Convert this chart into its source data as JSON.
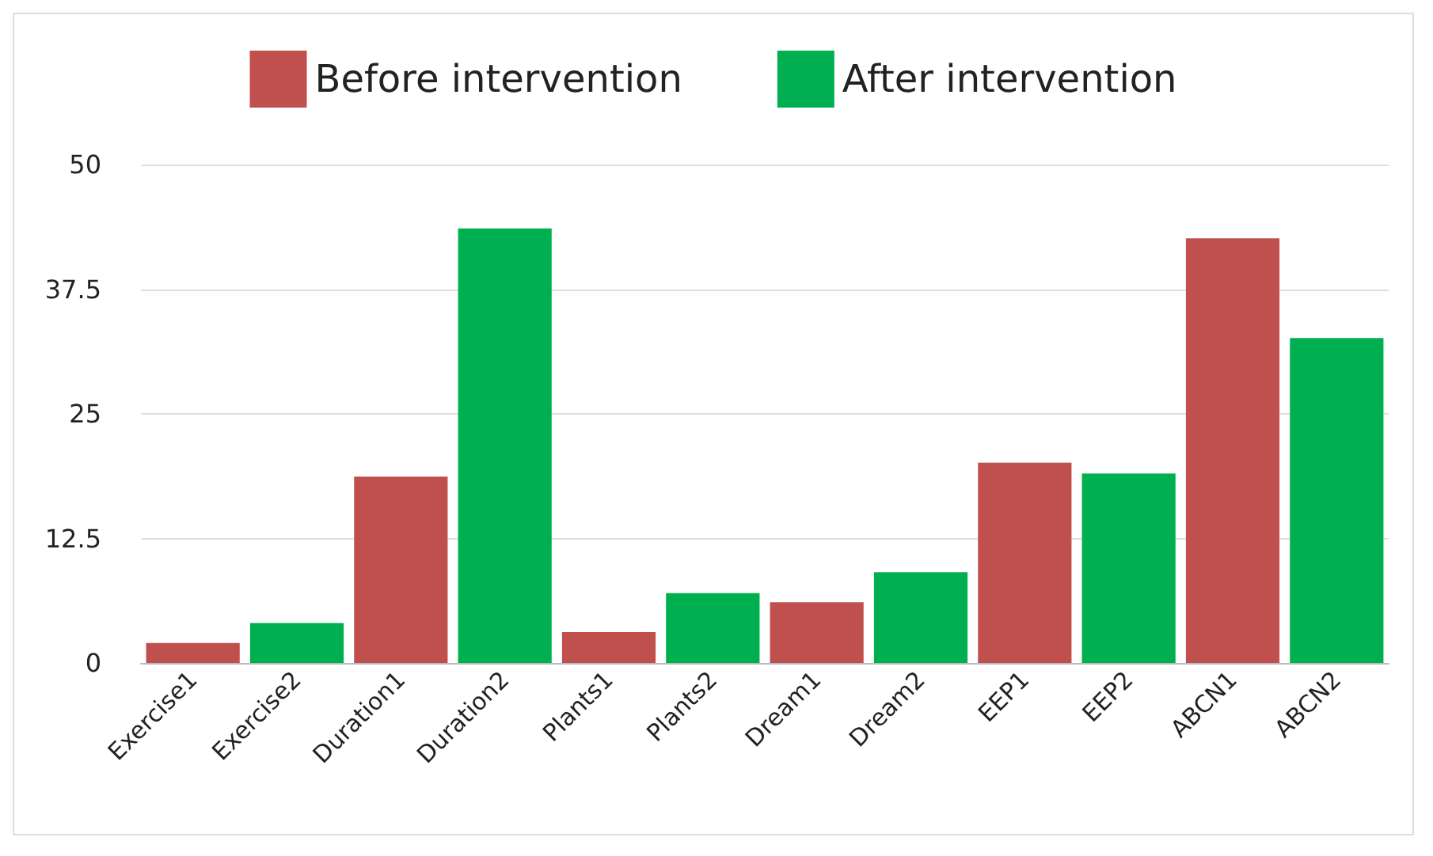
{
  "chart_data": {
    "type": "bar",
    "categories": [
      "Exercise1",
      "Exercise2",
      "Duration1",
      "Duration2",
      "Plants1",
      "Plants2",
      "Dream1",
      "Dream2",
      "EEP1",
      "EEP2",
      "ABCN1",
      "ABCN2"
    ],
    "series": [
      {
        "name": "Before intervention",
        "color": "#c0504d",
        "values": [
          2,
          null,
          18.7,
          null,
          3.1,
          null,
          6.1,
          null,
          20.1,
          null,
          42.6,
          null
        ]
      },
      {
        "name": "After intervention",
        "color": "#00b050",
        "values": [
          null,
          4,
          null,
          43.6,
          null,
          7,
          null,
          9.1,
          null,
          19,
          null,
          32.6
        ]
      }
    ],
    "ylim": [
      0,
      50
    ],
    "yticks": [
      0,
      12.5,
      25,
      37.5,
      50
    ],
    "grid": "y",
    "legend": "top"
  }
}
